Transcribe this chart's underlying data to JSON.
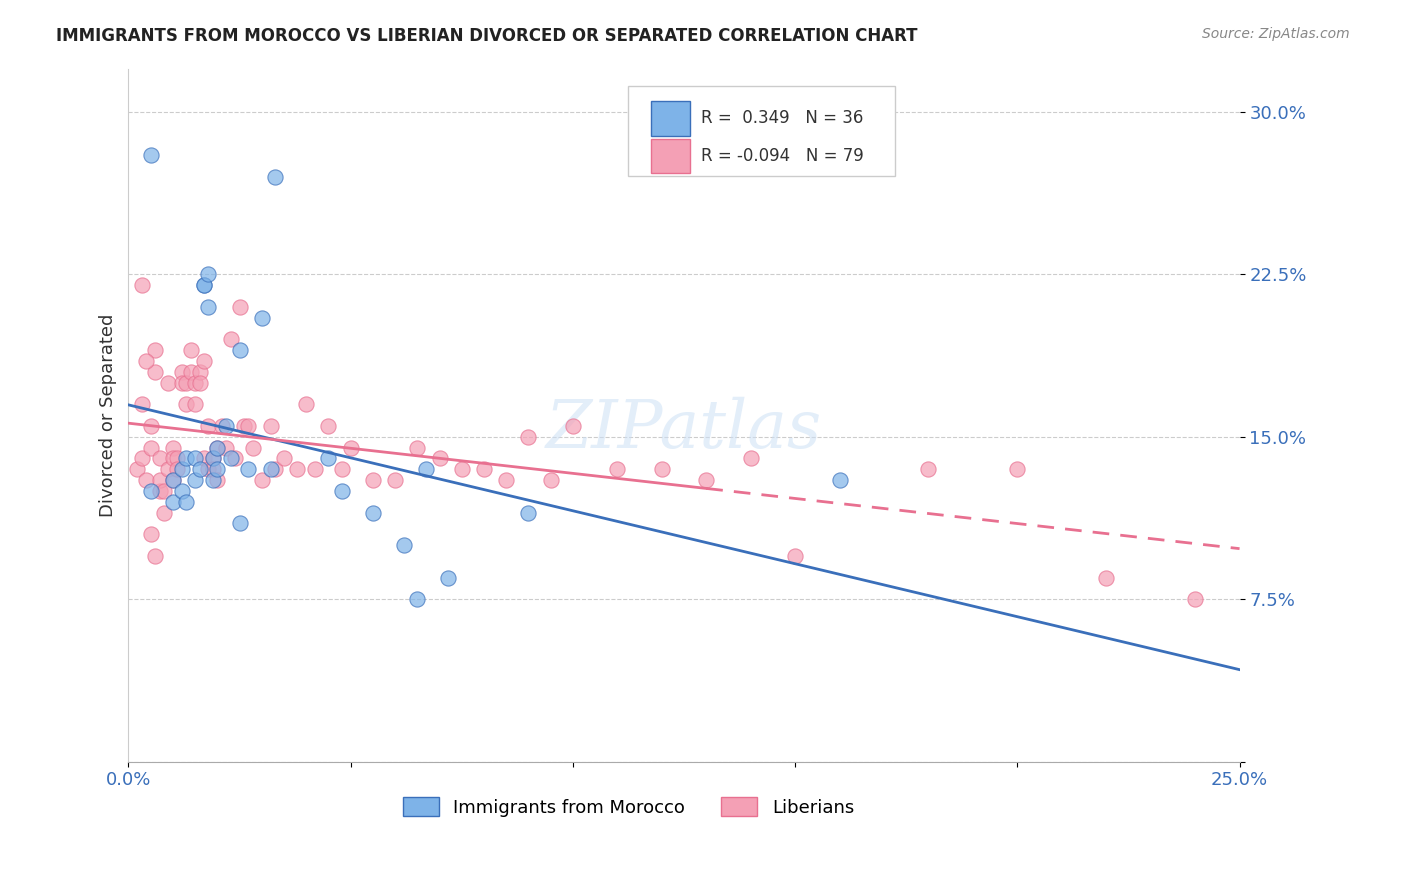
{
  "title": "IMMIGRANTS FROM MOROCCO VS LIBERIAN DIVORCED OR SEPARATED CORRELATION CHART",
  "source": "Source: ZipAtlas.com",
  "ylabel": "Divorced or Separated",
  "xlabel": "",
  "xlim": [
    0.0,
    0.25
  ],
  "ylim": [
    0.0,
    0.32
  ],
  "xticks": [
    0.0,
    0.05,
    0.1,
    0.15,
    0.2,
    0.25
  ],
  "yticks": [
    0.0,
    0.075,
    0.15,
    0.225,
    0.3
  ],
  "xtick_labels": [
    "0.0%",
    "",
    "",
    "",
    "",
    "25.0%"
  ],
  "ytick_labels": [
    "",
    "7.5%",
    "15.0%",
    "22.5%",
    "30.0%"
  ],
  "blue_R": "0.349",
  "blue_N": "36",
  "pink_R": "-0.094",
  "pink_N": "79",
  "blue_color": "#7eb3e8",
  "pink_color": "#f4a0b5",
  "blue_line_color": "#3a6fba",
  "pink_line_color": "#e87090",
  "legend_label_blue": "Immigrants from Morocco",
  "legend_label_pink": "Liberians",
  "watermark": "ZIPatlas",
  "blue_scatter_x": [
    0.005,
    0.01,
    0.01,
    0.012,
    0.012,
    0.013,
    0.013,
    0.015,
    0.015,
    0.016,
    0.017,
    0.017,
    0.018,
    0.018,
    0.019,
    0.019,
    0.02,
    0.02,
    0.022,
    0.023,
    0.025,
    0.027,
    0.03,
    0.032,
    0.033,
    0.045,
    0.048,
    0.055,
    0.062,
    0.065,
    0.067,
    0.072,
    0.09,
    0.16,
    0.025,
    0.005
  ],
  "blue_scatter_y": [
    0.125,
    0.13,
    0.12,
    0.135,
    0.125,
    0.14,
    0.12,
    0.14,
    0.13,
    0.135,
    0.22,
    0.22,
    0.225,
    0.21,
    0.14,
    0.13,
    0.145,
    0.135,
    0.155,
    0.14,
    0.19,
    0.135,
    0.205,
    0.135,
    0.27,
    0.14,
    0.125,
    0.115,
    0.1,
    0.075,
    0.135,
    0.085,
    0.115,
    0.13,
    0.11,
    0.28
  ],
  "pink_scatter_x": [
    0.002,
    0.003,
    0.004,
    0.005,
    0.005,
    0.006,
    0.006,
    0.007,
    0.007,
    0.007,
    0.008,
    0.008,
    0.009,
    0.009,
    0.01,
    0.01,
    0.01,
    0.011,
    0.011,
    0.012,
    0.012,
    0.013,
    0.013,
    0.014,
    0.014,
    0.015,
    0.015,
    0.016,
    0.016,
    0.017,
    0.017,
    0.018,
    0.018,
    0.019,
    0.019,
    0.02,
    0.02,
    0.021,
    0.022,
    0.023,
    0.024,
    0.025,
    0.026,
    0.027,
    0.028,
    0.03,
    0.032,
    0.033,
    0.035,
    0.038,
    0.04,
    0.042,
    0.045,
    0.048,
    0.05,
    0.055,
    0.06,
    0.065,
    0.07,
    0.075,
    0.08,
    0.085,
    0.09,
    0.095,
    0.1,
    0.11,
    0.12,
    0.13,
    0.14,
    0.15,
    0.18,
    0.2,
    0.22,
    0.24,
    0.003,
    0.003,
    0.004,
    0.005,
    0.006
  ],
  "pink_scatter_y": [
    0.135,
    0.14,
    0.13,
    0.145,
    0.155,
    0.19,
    0.18,
    0.125,
    0.13,
    0.14,
    0.125,
    0.115,
    0.175,
    0.135,
    0.145,
    0.14,
    0.13,
    0.14,
    0.135,
    0.18,
    0.175,
    0.165,
    0.175,
    0.19,
    0.18,
    0.175,
    0.165,
    0.18,
    0.175,
    0.185,
    0.14,
    0.155,
    0.135,
    0.14,
    0.135,
    0.145,
    0.13,
    0.155,
    0.145,
    0.195,
    0.14,
    0.21,
    0.155,
    0.155,
    0.145,
    0.13,
    0.155,
    0.135,
    0.14,
    0.135,
    0.165,
    0.135,
    0.155,
    0.135,
    0.145,
    0.13,
    0.13,
    0.145,
    0.14,
    0.135,
    0.135,
    0.13,
    0.15,
    0.13,
    0.155,
    0.135,
    0.135,
    0.13,
    0.14,
    0.095,
    0.135,
    0.135,
    0.085,
    0.075,
    0.22,
    0.165,
    0.185,
    0.105,
    0.095
  ]
}
